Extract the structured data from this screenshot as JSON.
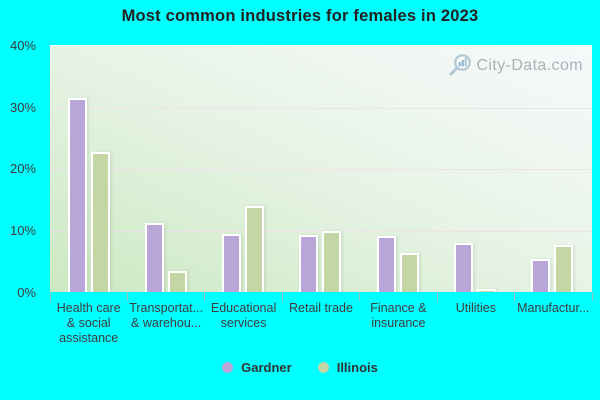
{
  "title": "Most common industries for females in 2023",
  "watermark": {
    "text": "City-Data.com"
  },
  "colors": {
    "background": "#00ffff",
    "gardner_bar": "#b9a6d9",
    "illinois_bar": "#c4d6a3",
    "bar_border": "#ffffff",
    "plot_gradient_top_right": "#f6f9fa",
    "plot_gradient_bottom_left": "#cbe9c2",
    "gridline": "#eee0ea",
    "title_text": "#222222",
    "axis_text": "#3b3b3b",
    "watermark_text": "#a9b1b8"
  },
  "y_axis": {
    "tick_labels": [
      "40%",
      "30%",
      "20%",
      "10%",
      "0%"
    ]
  },
  "chart_data": {
    "type": "bar",
    "title": "Most common industries for females in 2023",
    "xlabel": "",
    "ylabel": "",
    "ylim": [
      0,
      40
    ],
    "ytick_interval": 10,
    "grid": true,
    "legend_position": "bottom",
    "categories": [
      "Health care & social assistance",
      "Transportat... & warehou...",
      "Educational services",
      "Retail trade",
      "Finance & insurance",
      "Utilities",
      "Manufactur..."
    ],
    "category_display_lines": [
      [
        "Health care",
        "& social",
        "assistance"
      ],
      [
        "Transportat...",
        "& warehou..."
      ],
      [
        "Educational",
        "services"
      ],
      [
        "Retail trade"
      ],
      [
        "Finance &",
        "insurance"
      ],
      [
        "Utilities"
      ],
      [
        "Manufactur..."
      ]
    ],
    "series": [
      {
        "name": "Gardner",
        "color": "#b9a6d9",
        "values": [
          31.4,
          11.2,
          9.4,
          9.2,
          9.1,
          7.9,
          5.4
        ]
      },
      {
        "name": "Illinois",
        "color": "#c4d6a3",
        "values": [
          22.7,
          3.4,
          14.0,
          9.9,
          6.3,
          0.5,
          7.6
        ]
      }
    ]
  }
}
